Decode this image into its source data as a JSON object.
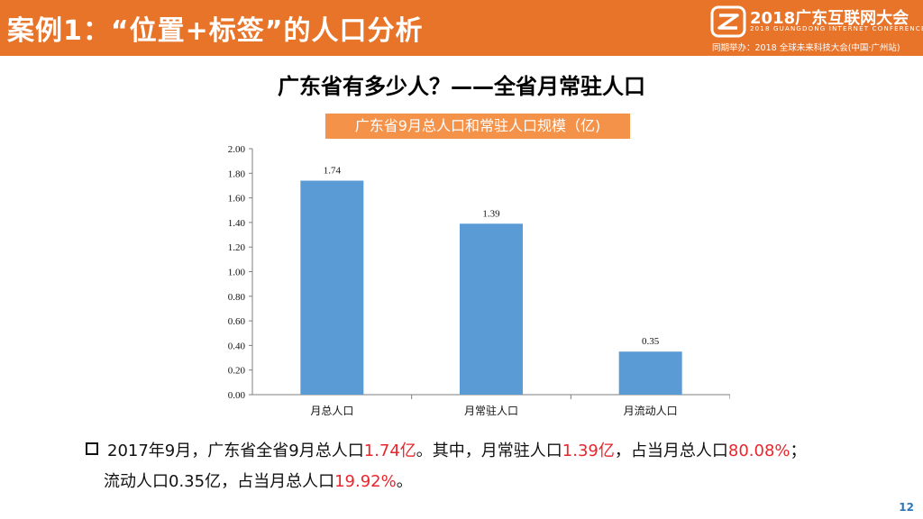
{
  "header": {
    "title": "案例1：“位置+标签”的人口分析",
    "conference_name": "2018广东互联网大会",
    "conference_en": "2018 GUANGDONG INTERNET CONFERENCE",
    "conference_host": "同期举办：2018 全球未来科技大会(中国·广州站)",
    "logo_icon": "conference-logo-icon",
    "bar_color": "#e8742a"
  },
  "slide": {
    "title": "广东省有多少人？——全省月常驻人口",
    "page_number": "12"
  },
  "chart_data": {
    "type": "bar",
    "title": "广东省9月总人口和常驻人口规模（亿)",
    "categories": [
      "月总人口",
      "月常驻人口",
      "月流动人口"
    ],
    "values": [
      1.74,
      1.39,
      0.35
    ],
    "value_labels": [
      "1.74",
      "1.39",
      "0.35"
    ],
    "ylim": [
      0,
      2.0
    ],
    "yticks": [
      "0.00",
      "0.20",
      "0.40",
      "0.60",
      "0.80",
      "1.00",
      "1.20",
      "1.40",
      "1.60",
      "1.80",
      "2.00"
    ],
    "xlabel": "",
    "ylabel": "",
    "grid": false,
    "bar_color": "#5b9bd5"
  },
  "summary": {
    "line1": {
      "p1": "2017年9月，广东省全省9月总人口",
      "total": "1.74亿",
      "p2": "。其中，月常驻人口",
      "resident": "1.39亿",
      "p3": "，占当月总人口",
      "resident_pct": "80.08%",
      "p4": "；"
    },
    "line2": {
      "p1": "流动人口0.35亿，占当月总人口",
      "floating_pct": "19.92%",
      "p2": "。"
    },
    "highlight_color": "#e8262d"
  }
}
